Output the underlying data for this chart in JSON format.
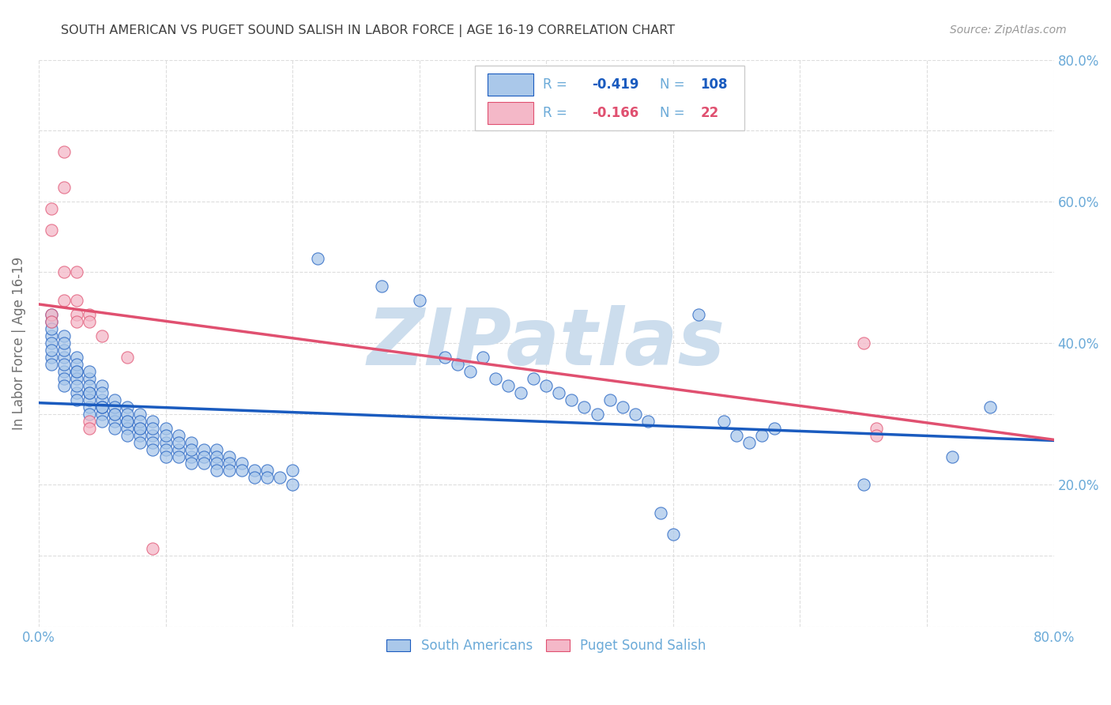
{
  "title": "SOUTH AMERICAN VS PUGET SOUND SALISH IN LABOR FORCE | AGE 16-19 CORRELATION CHART",
  "source_text": "Source: ZipAtlas.com",
  "ylabel": "In Labor Force | Age 16-19",
  "xlim": [
    0.0,
    0.8
  ],
  "ylim": [
    0.0,
    0.8
  ],
  "xticks": [
    0.0,
    0.1,
    0.2,
    0.3,
    0.4,
    0.5,
    0.6,
    0.7,
    0.8
  ],
  "yticks": [
    0.0,
    0.1,
    0.2,
    0.3,
    0.4,
    0.5,
    0.6,
    0.7,
    0.8
  ],
  "blue_color": "#aac8ea",
  "pink_color": "#f4b8c8",
  "blue_line_color": "#1a5bbf",
  "pink_line_color": "#e05070",
  "blue_scatter": [
    [
      0.01,
      0.44
    ],
    [
      0.01,
      0.41
    ],
    [
      0.01,
      0.43
    ],
    [
      0.01,
      0.4
    ],
    [
      0.01,
      0.38
    ],
    [
      0.01,
      0.42
    ],
    [
      0.01,
      0.39
    ],
    [
      0.01,
      0.37
    ],
    [
      0.02,
      0.41
    ],
    [
      0.02,
      0.38
    ],
    [
      0.02,
      0.36
    ],
    [
      0.02,
      0.39
    ],
    [
      0.02,
      0.4
    ],
    [
      0.02,
      0.35
    ],
    [
      0.02,
      0.37
    ],
    [
      0.02,
      0.34
    ],
    [
      0.03,
      0.38
    ],
    [
      0.03,
      0.36
    ],
    [
      0.03,
      0.35
    ],
    [
      0.03,
      0.33
    ],
    [
      0.03,
      0.37
    ],
    [
      0.03,
      0.34
    ],
    [
      0.03,
      0.32
    ],
    [
      0.03,
      0.36
    ],
    [
      0.04,
      0.35
    ],
    [
      0.04,
      0.33
    ],
    [
      0.04,
      0.34
    ],
    [
      0.04,
      0.31
    ],
    [
      0.04,
      0.36
    ],
    [
      0.04,
      0.32
    ],
    [
      0.04,
      0.3
    ],
    [
      0.04,
      0.33
    ],
    [
      0.05,
      0.34
    ],
    [
      0.05,
      0.32
    ],
    [
      0.05,
      0.3
    ],
    [
      0.05,
      0.33
    ],
    [
      0.05,
      0.31
    ],
    [
      0.05,
      0.29
    ],
    [
      0.05,
      0.31
    ],
    [
      0.06,
      0.32
    ],
    [
      0.06,
      0.3
    ],
    [
      0.06,
      0.29
    ],
    [
      0.06,
      0.31
    ],
    [
      0.06,
      0.28
    ],
    [
      0.06,
      0.3
    ],
    [
      0.07,
      0.31
    ],
    [
      0.07,
      0.29
    ],
    [
      0.07,
      0.28
    ],
    [
      0.07,
      0.3
    ],
    [
      0.07,
      0.27
    ],
    [
      0.07,
      0.29
    ],
    [
      0.08,
      0.3
    ],
    [
      0.08,
      0.28
    ],
    [
      0.08,
      0.27
    ],
    [
      0.08,
      0.29
    ],
    [
      0.08,
      0.26
    ],
    [
      0.08,
      0.28
    ],
    [
      0.09,
      0.29
    ],
    [
      0.09,
      0.27
    ],
    [
      0.09,
      0.26
    ],
    [
      0.09,
      0.28
    ],
    [
      0.09,
      0.25
    ],
    [
      0.1,
      0.28
    ],
    [
      0.1,
      0.26
    ],
    [
      0.1,
      0.25
    ],
    [
      0.1,
      0.27
    ],
    [
      0.1,
      0.24
    ],
    [
      0.11,
      0.27
    ],
    [
      0.11,
      0.25
    ],
    [
      0.11,
      0.26
    ],
    [
      0.11,
      0.24
    ],
    [
      0.12,
      0.26
    ],
    [
      0.12,
      0.24
    ],
    [
      0.12,
      0.25
    ],
    [
      0.12,
      0.23
    ],
    [
      0.13,
      0.25
    ],
    [
      0.13,
      0.24
    ],
    [
      0.13,
      0.23
    ],
    [
      0.14,
      0.25
    ],
    [
      0.14,
      0.24
    ],
    [
      0.14,
      0.23
    ],
    [
      0.14,
      0.22
    ],
    [
      0.15,
      0.24
    ],
    [
      0.15,
      0.23
    ],
    [
      0.15,
      0.22
    ],
    [
      0.16,
      0.23
    ],
    [
      0.16,
      0.22
    ],
    [
      0.17,
      0.22
    ],
    [
      0.17,
      0.21
    ],
    [
      0.18,
      0.22
    ],
    [
      0.18,
      0.21
    ],
    [
      0.19,
      0.21
    ],
    [
      0.2,
      0.2
    ],
    [
      0.2,
      0.22
    ],
    [
      0.22,
      0.52
    ],
    [
      0.27,
      0.48
    ],
    [
      0.3,
      0.46
    ],
    [
      0.32,
      0.38
    ],
    [
      0.33,
      0.37
    ],
    [
      0.34,
      0.36
    ],
    [
      0.35,
      0.38
    ],
    [
      0.36,
      0.35
    ],
    [
      0.37,
      0.34
    ],
    [
      0.38,
      0.33
    ],
    [
      0.39,
      0.35
    ],
    [
      0.4,
      0.34
    ],
    [
      0.41,
      0.33
    ],
    [
      0.42,
      0.32
    ],
    [
      0.43,
      0.31
    ],
    [
      0.44,
      0.3
    ],
    [
      0.45,
      0.32
    ],
    [
      0.46,
      0.31
    ],
    [
      0.47,
      0.3
    ],
    [
      0.48,
      0.29
    ],
    [
      0.49,
      0.16
    ],
    [
      0.5,
      0.13
    ],
    [
      0.52,
      0.44
    ],
    [
      0.54,
      0.29
    ],
    [
      0.55,
      0.27
    ],
    [
      0.56,
      0.26
    ],
    [
      0.57,
      0.27
    ],
    [
      0.58,
      0.28
    ],
    [
      0.65,
      0.2
    ],
    [
      0.72,
      0.24
    ],
    [
      0.75,
      0.31
    ]
  ],
  "pink_scatter": [
    [
      0.01,
      0.59
    ],
    [
      0.01,
      0.56
    ],
    [
      0.01,
      0.44
    ],
    [
      0.01,
      0.43
    ],
    [
      0.02,
      0.67
    ],
    [
      0.02,
      0.62
    ],
    [
      0.02,
      0.5
    ],
    [
      0.02,
      0.46
    ],
    [
      0.03,
      0.5
    ],
    [
      0.03,
      0.46
    ],
    [
      0.03,
      0.44
    ],
    [
      0.03,
      0.43
    ],
    [
      0.04,
      0.44
    ],
    [
      0.04,
      0.43
    ],
    [
      0.04,
      0.29
    ],
    [
      0.04,
      0.28
    ],
    [
      0.05,
      0.41
    ],
    [
      0.07,
      0.38
    ],
    [
      0.09,
      0.11
    ],
    [
      0.65,
      0.4
    ],
    [
      0.66,
      0.28
    ],
    [
      0.66,
      0.27
    ]
  ],
  "watermark": "ZIPatlas",
  "watermark_color": "#ccdded",
  "background_color": "#ffffff",
  "grid_color": "#dddddd",
  "title_color": "#404040",
  "axis_label_color": "#707070",
  "tick_color": "#6baad8",
  "legend_border_color": "#cccccc"
}
